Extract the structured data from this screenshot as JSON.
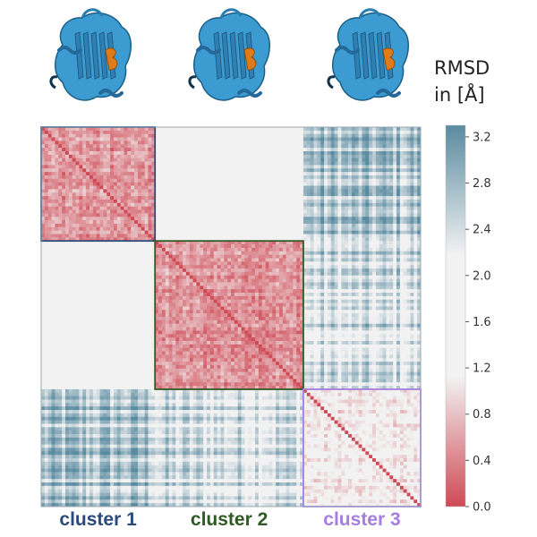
{
  "chart_data": {
    "type": "heatmap",
    "colorbar": {
      "title_lines": [
        "RMSD",
        "in [Å]"
      ],
      "ticks": [
        0.0,
        0.4,
        0.8,
        1.2,
        1.6,
        2.0,
        2.4,
        2.8,
        3.2
      ],
      "tick_labels": [
        "0.0",
        "0.4",
        "0.8",
        "1.2",
        "1.6",
        "2.0",
        "2.4",
        "2.8",
        "3.2"
      ],
      "range": [
        0.0,
        3.3
      ],
      "colors": {
        "low": "#cf4a55",
        "mid": "#f2f2f2",
        "high": "#5a8ba0"
      }
    },
    "clusters": [
      {
        "label": "cluster 1",
        "color": "#2b4a7c",
        "size": 33,
        "structure_icon": "protein-ribbon-structure-1"
      },
      {
        "label": "cluster 2",
        "color": "#2f5a25",
        "size": 43,
        "structure_icon": "protein-ribbon-structure-2"
      },
      {
        "label": "cluster 3",
        "color": "#a67de0",
        "size": 34,
        "structure_icon": "protein-ribbon-structure-3"
      }
    ],
    "block_rmsd": [
      [
        0.5,
        2.0,
        2.6
      ],
      [
        2.0,
        0.5,
        2.3
      ],
      [
        2.6,
        2.3,
        1.1
      ]
    ],
    "diagonal_rmsd": 0.0,
    "grid": false
  }
}
